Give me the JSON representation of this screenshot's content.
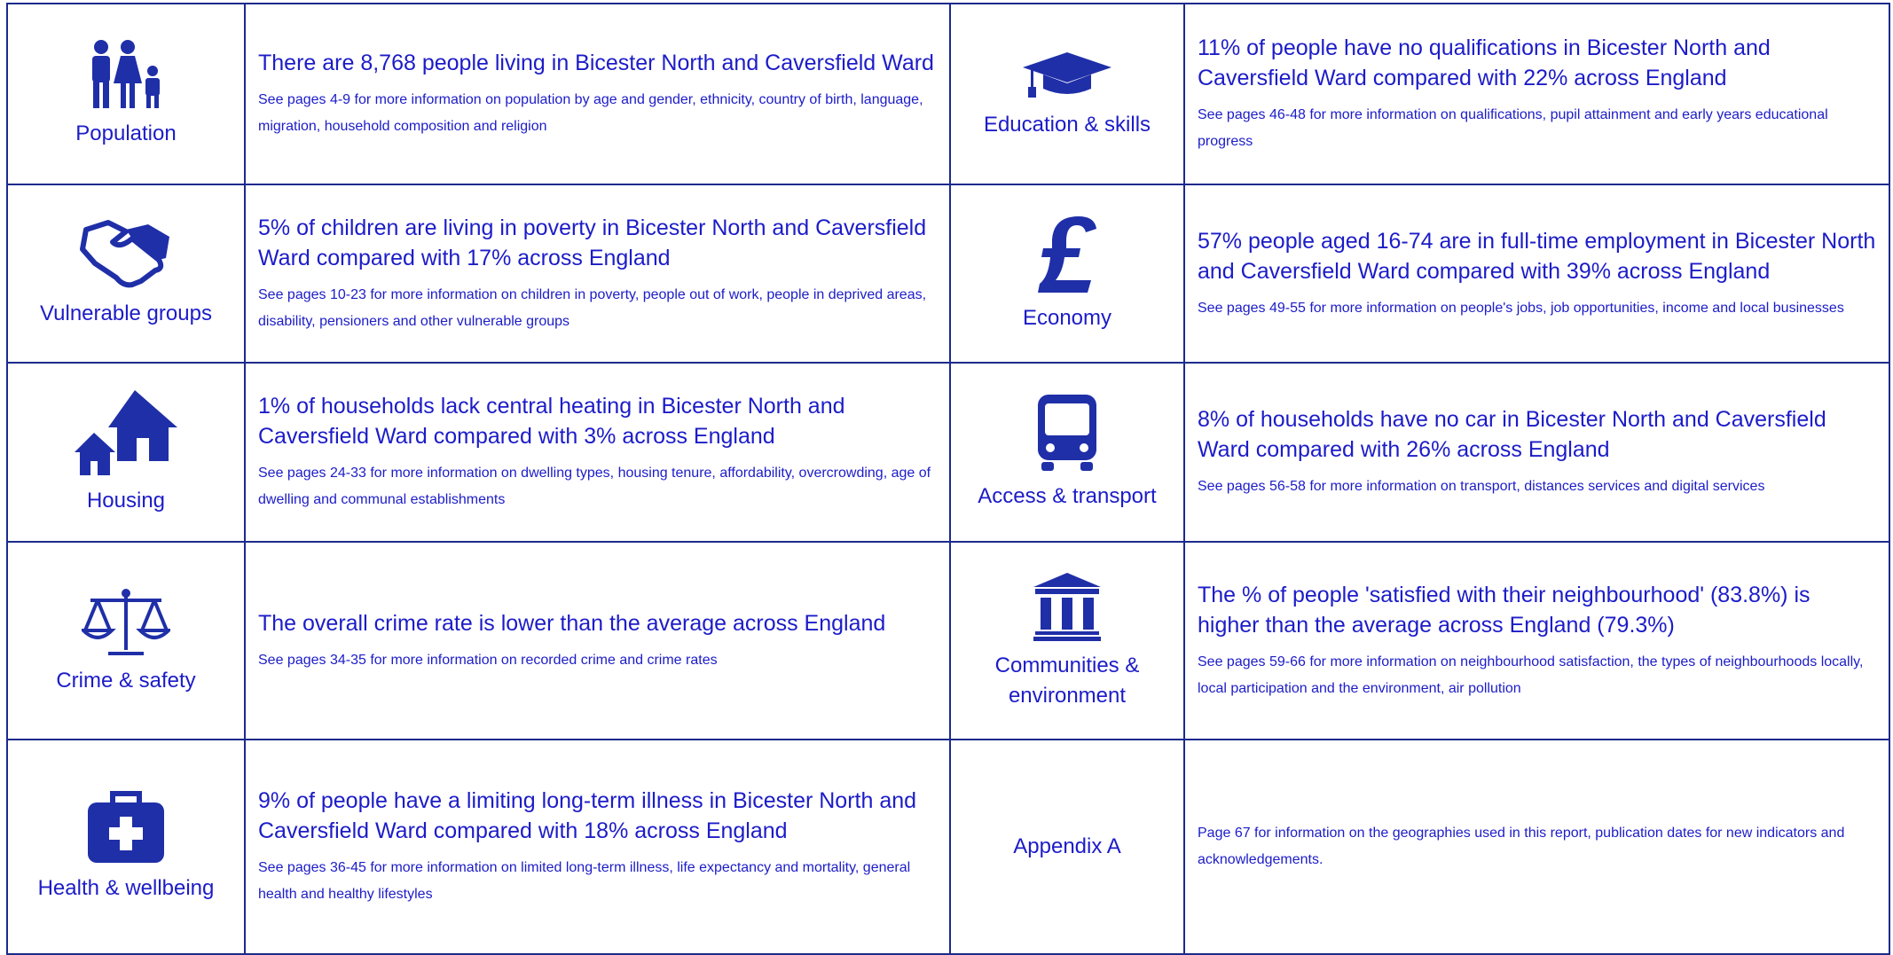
{
  "rows": [
    {
      "left": {
        "label": "Population",
        "headline": "There are 8,768 people living in Bicester North and Caversfield Ward",
        "detail": "See pages 4-9 for more information on population by age and gender, ethnicity, country of birth, language, migration, household composition and religion"
      },
      "right": {
        "label": "Education & skills",
        "headline": "11% of people have no qualifications in Bicester North and Caversfield Ward compared with 22% across England",
        "detail": "See pages 46-48 for more information on qualifications, pupil attainment and early years educational progress"
      }
    },
    {
      "left": {
        "label": "Vulnerable groups",
        "headline": "5% of children are living in poverty in Bicester North and Caversfield Ward compared with 17% across England",
        "detail": "See pages 10-23 for more information on children in poverty, people out of work, people in deprived areas, disability, pensioners and other vulnerable groups"
      },
      "right": {
        "label": "Economy",
        "headline": "57% people aged 16-74 are in full-time employment in Bicester North and Caversfield Ward compared with 39% across England",
        "detail": "See pages 49-55 for more information on people's jobs, job opportunities, income and local businesses"
      }
    },
    {
      "left": {
        "label": "Housing",
        "headline": "1% of households lack central heating in Bicester North and Caversfield Ward compared with 3% across England",
        "detail": "See pages 24-33 for more information on dwelling types, housing tenure, affordability, overcrowding, age of dwelling and communal establishments"
      },
      "right": {
        "label": "Access & transport",
        "headline": "8% of households have no car in Bicester North and Caversfield Ward compared with 26% across England",
        "detail": "See pages 56-58 for more information on transport, distances services and digital services"
      }
    },
    {
      "left": {
        "label": "Crime & safety",
        "headline": "The overall crime rate is lower than the average across England",
        "detail": "See pages 34-35 for more information on recorded crime and crime rates"
      },
      "right": {
        "label": "Communities & environment",
        "headline": "The % of people 'satisfied with their neighbourhood' (83.8%) is higher than the average across England (79.3%)",
        "detail": "See pages 59-66 for more information on neighbourhood satisfaction, the types of neighbourhoods locally, local participation and the environment, air pollution"
      }
    },
    {
      "left": {
        "label": "Health & wellbeing",
        "headline": "9% of people have a limiting long-term illness in Bicester North and Caversfield Ward compared with 18% across England",
        "detail": "See pages 36-45 for more information on limited long-term illness, life expectancy and mortality, general health and healthy lifestyles"
      },
      "right": {
        "label": "Appendix A",
        "detail": "Page 67 for information on the geographies used in this report, publication dates for new indicators and acknowledgements."
      }
    }
  ]
}
